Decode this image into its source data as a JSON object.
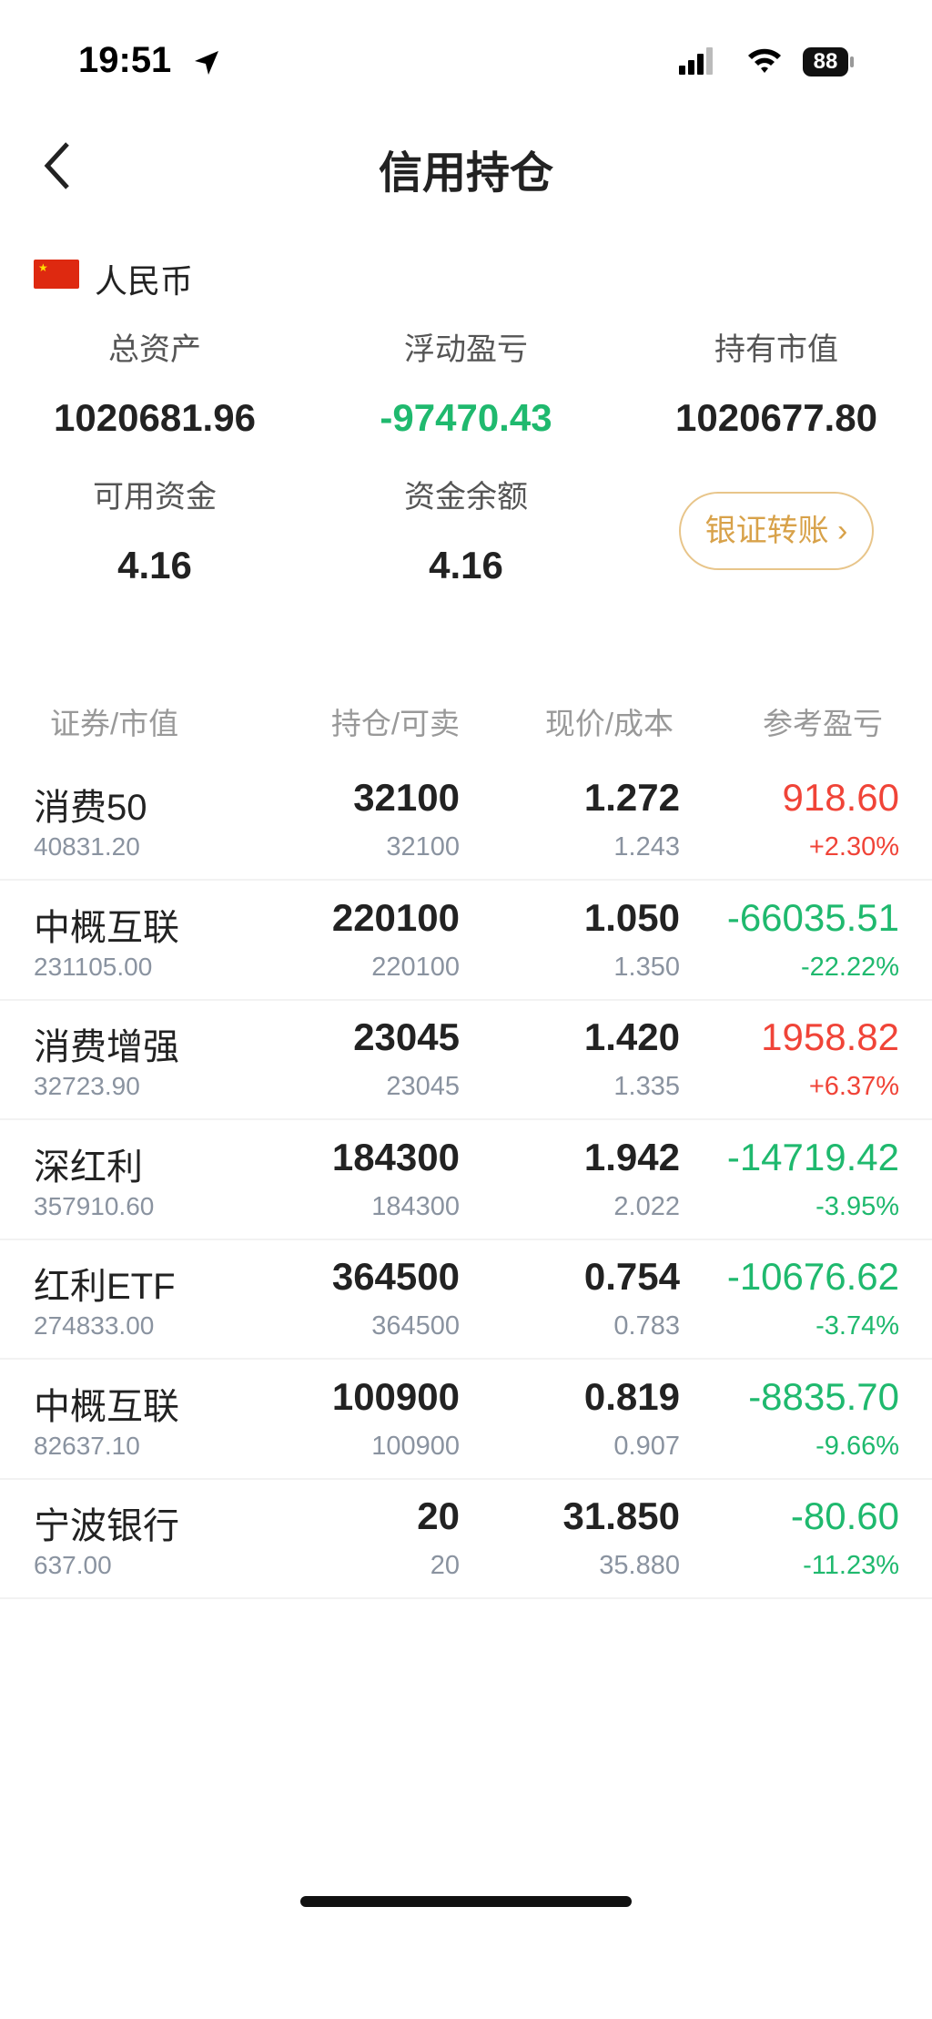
{
  "status": {
    "time": "19:51",
    "battery": "88"
  },
  "nav": {
    "title": "信用持仓"
  },
  "account": {
    "currency": "人民币",
    "summary": [
      {
        "label": "总资产",
        "value": "1020681.96"
      },
      {
        "label": "浮动盈亏",
        "value": "-97470.43"
      },
      {
        "label": "持有市值",
        "value": "1020677.80"
      },
      {
        "label": "可用资金",
        "value": "4.16"
      },
      {
        "label": "资金余额",
        "value": "4.16"
      }
    ],
    "transfer_button": "银证转账 ›"
  },
  "table": {
    "headers": [
      "证券/市值",
      "持仓/可卖",
      "现价/成本",
      "参考盈亏"
    ],
    "rows": [
      {
        "name": "消费50",
        "market_value": "40831.20",
        "holding": "32100",
        "sellable": "32100",
        "price": "1.272",
        "cost": "1.243",
        "pnl": "918.60",
        "pnl_pct": "+2.30%",
        "dir": "up"
      },
      {
        "name": "中概互联",
        "market_value": "231105.00",
        "holding": "220100",
        "sellable": "220100",
        "price": "1.050",
        "cost": "1.350",
        "pnl": "-66035.51",
        "pnl_pct": "-22.22%",
        "dir": "down"
      },
      {
        "name": "消费增强",
        "market_value": "32723.90",
        "holding": "23045",
        "sellable": "23045",
        "price": "1.420",
        "cost": "1.335",
        "pnl": "1958.82",
        "pnl_pct": "+6.37%",
        "dir": "up"
      },
      {
        "name": "深红利",
        "market_value": "357910.60",
        "holding": "184300",
        "sellable": "184300",
        "price": "1.942",
        "cost": "2.022",
        "pnl": "-14719.42",
        "pnl_pct": "-3.95%",
        "dir": "down"
      },
      {
        "name": "红利ETF",
        "market_value": "274833.00",
        "holding": "364500",
        "sellable": "364500",
        "price": "0.754",
        "cost": "0.783",
        "pnl": "-10676.62",
        "pnl_pct": "-3.74%",
        "dir": "down"
      },
      {
        "name": "中概互联",
        "market_value": "82637.10",
        "holding": "100900",
        "sellable": "100900",
        "price": "0.819",
        "cost": "0.907",
        "pnl": "-8835.70",
        "pnl_pct": "-9.66%",
        "dir": "down"
      },
      {
        "name": "宁波银行",
        "market_value": "637.00",
        "holding": "20",
        "sellable": "20",
        "price": "31.850",
        "cost": "35.880",
        "pnl": "-80.60",
        "pnl_pct": "-11.23%",
        "dir": "down"
      }
    ]
  },
  "colors": {
    "up": "#f04438",
    "down": "#1fb96e",
    "accent": "#d8a24a"
  }
}
